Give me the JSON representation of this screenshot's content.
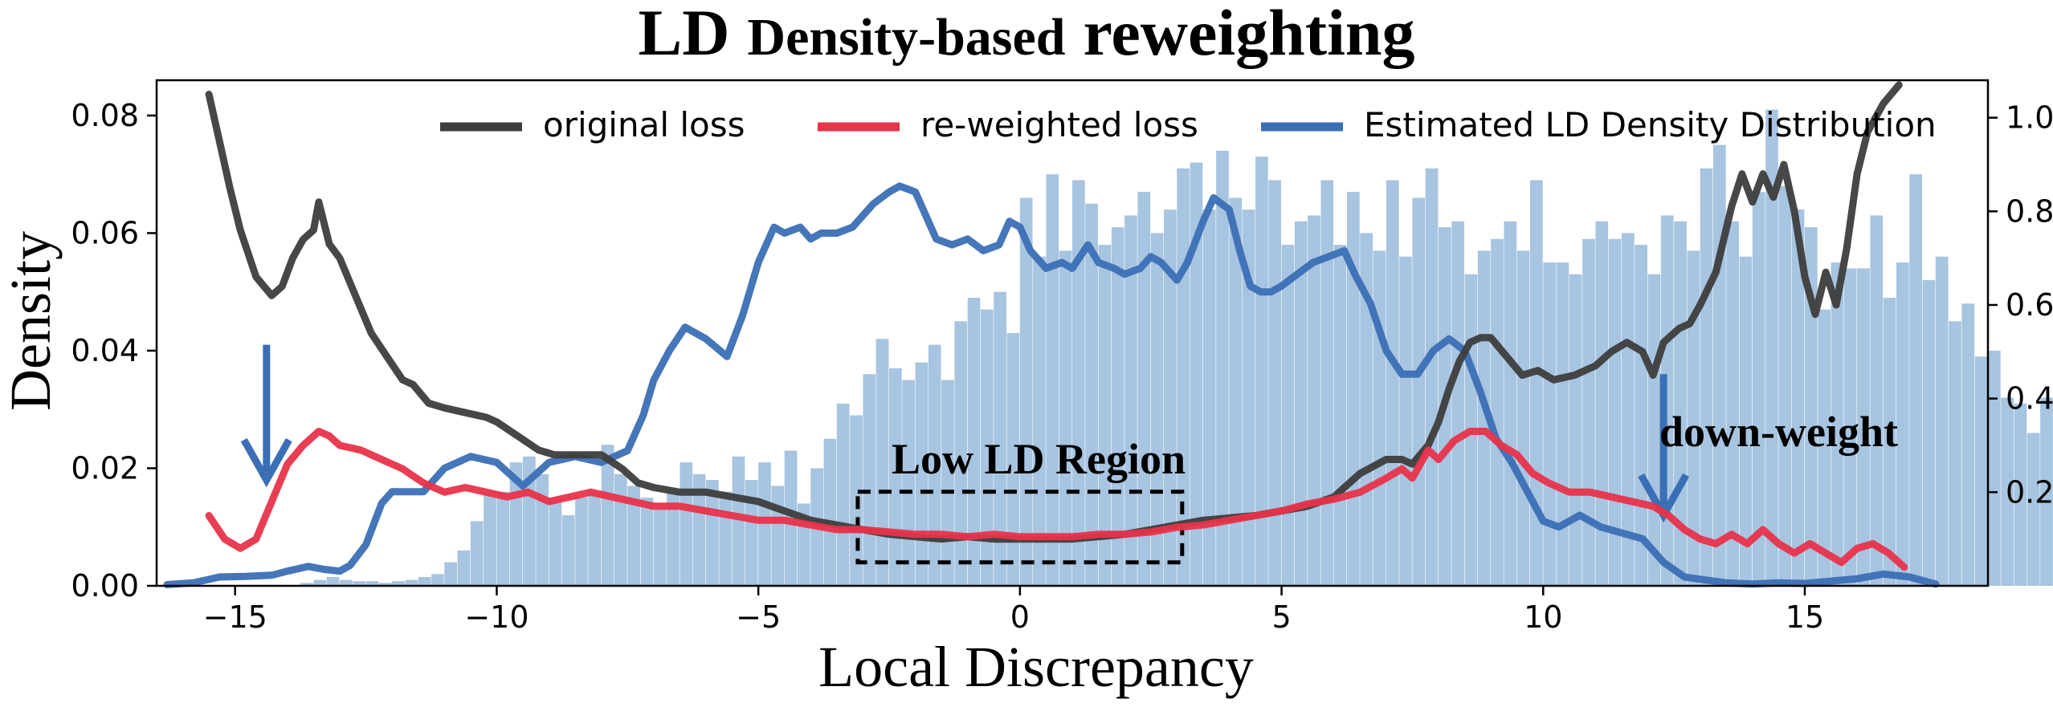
{
  "title_main": "LD",
  "title_rest": "Density-based",
  "title_end": "reweighting",
  "chart_data": {
    "type": "bar",
    "xlabel": "Local Discrepancy",
    "ylabel": "Density",
    "xlim": [
      -16.5,
      18.5
    ],
    "ylim": [
      0,
      0.086
    ],
    "y2lim": [
      0,
      1.08
    ],
    "xticks": [
      -15,
      -10,
      -5,
      0,
      5,
      10,
      15
    ],
    "xtick_labels": [
      "−15",
      "−10",
      "−5",
      "0",
      "5",
      "10",
      "15"
    ],
    "yticks": [
      0.0,
      0.02,
      0.04,
      0.06,
      0.08
    ],
    "ytick_labels": [
      "0.00",
      "0.02",
      "0.04",
      "0.06",
      "0.08"
    ],
    "y2ticks": [
      0.2,
      0.4,
      0.6,
      0.8,
      1.0
    ],
    "y2tick_labels": [
      "0.2",
      "0.4",
      "0.6",
      "0.8",
      "1.0"
    ],
    "histogram": {
      "bin_width": 0.25,
      "x_start": -16.0,
      "values": [
        0,
        0,
        0,
        0,
        0,
        0,
        0,
        0,
        0,
        0.0005,
        0.001,
        0.0015,
        0.001,
        0.0008,
        0.0008,
        0.0005,
        0.0008,
        0.001,
        0.0015,
        0.002,
        0.004,
        0.006,
        0.011,
        0.016,
        0.016,
        0.021,
        0.022,
        0.019,
        0.015,
        0.012,
        0.015,
        0.016,
        0.024,
        0.019,
        0.017,
        0.015,
        0.013,
        0.016,
        0.021,
        0.019,
        0.018,
        0.016,
        0.022,
        0.018,
        0.021,
        0.017,
        0.023,
        0.014,
        0.02,
        0.025,
        0.031,
        0.029,
        0.036,
        0.042,
        0.037,
        0.035,
        0.038,
        0.041,
        0.035,
        0.045,
        0.049,
        0.047,
        0.05,
        0.043,
        0.066,
        0.056,
        0.07,
        0.057,
        0.069,
        0.065,
        0.058,
        0.061,
        0.063,
        0.067,
        0.06,
        0.064,
        0.071,
        0.072,
        0.064,
        0.074,
        0.066,
        0.064,
        0.073,
        0.069,
        0.058,
        0.062,
        0.063,
        0.069,
        0.058,
        0.067,
        0.06,
        0.057,
        0.069,
        0.056,
        0.066,
        0.071,
        0.061,
        0.062,
        0.053,
        0.057,
        0.059,
        0.062,
        0.057,
        0.069,
        0.055,
        0.055,
        0.053,
        0.059,
        0.062,
        0.059,
        0.06,
        0.058,
        0.053,
        0.063,
        0.062,
        0.057,
        0.071,
        0.075,
        0.062,
        0.056,
        0.067,
        0.081,
        0.068,
        0.064,
        0.061,
        0.047,
        0.055,
        0.054,
        0.054,
        0.063,
        0.049,
        0.055,
        0.07,
        0.052,
        0.056,
        0.045,
        0.048,
        0.039,
        0.04,
        0.032,
        0.031,
        0.026,
        0.032,
        0.036,
        0.038,
        0.041,
        0.034,
        0.03,
        0.025,
        0.023,
        0.02,
        0.018,
        0.016,
        0.015,
        0.012,
        0.01,
        0.011,
        0.012,
        0.01,
        0.01,
        0.008,
        0.009,
        0.011,
        0.012,
        0.01,
        0.008,
        0.005,
        0.005,
        0.004,
        0.003,
        0.002,
        0.0015,
        0.001,
        0.001,
        0.0008,
        0.0005,
        0.0005,
        0.0005,
        0.0005,
        0.0003,
        0.0003,
        0.0003,
        0.0003,
        0.0003,
        0.0003,
        0.0005,
        0.0005,
        0.0005,
        0.0005,
        0.001,
        0.001,
        0.0005
      ]
    },
    "series": [
      {
        "name": "original loss",
        "axis": "right",
        "color": "#3d3d3d",
        "x": [
          -15.5,
          -15.3,
          -15.1,
          -14.9,
          -14.6,
          -14.3,
          -14.1,
          -13.9,
          -13.7,
          -13.5,
          -13.4,
          -13.2,
          -13.0,
          -12.7,
          -12.4,
          -12.1,
          -11.8,
          -11.6,
          -11.3,
          -11.0,
          -10.6,
          -10.2,
          -10.0,
          -9.6,
          -9.2,
          -8.9,
          -8.5,
          -8.0,
          -7.6,
          -7.3,
          -7.0,
          -6.5,
          -6.0,
          -5.5,
          -5.0,
          -4.5,
          -4.0,
          -3.5,
          -3.0,
          -2.5,
          -2.0,
          -1.5,
          -1.0,
          -0.5,
          0.0,
          0.5,
          1.0,
          1.5,
          2.0,
          2.5,
          3.0,
          3.5,
          4.0,
          4.5,
          5.0,
          5.5,
          6.0,
          6.5,
          7.0,
          7.3,
          7.5,
          7.8,
          8.0,
          8.2,
          8.4,
          8.6,
          8.8,
          9.0,
          9.3,
          9.6,
          9.9,
          10.2,
          10.6,
          11.0,
          11.3,
          11.6,
          11.9,
          12.1,
          12.3,
          12.6,
          12.8,
          13.0,
          13.3,
          13.6,
          13.8,
          14.0,
          14.2,
          14.4,
          14.6,
          14.8,
          15.0,
          15.2,
          15.4,
          15.6,
          15.8,
          16.0,
          16.2,
          16.5,
          16.8
        ],
        "y": [
          1.05,
          0.95,
          0.85,
          0.76,
          0.66,
          0.62,
          0.64,
          0.7,
          0.74,
          0.76,
          0.82,
          0.73,
          0.7,
          0.62,
          0.54,
          0.49,
          0.44,
          0.43,
          0.39,
          0.38,
          0.37,
          0.36,
          0.35,
          0.32,
          0.29,
          0.28,
          0.28,
          0.28,
          0.25,
          0.22,
          0.21,
          0.2,
          0.2,
          0.19,
          0.18,
          0.16,
          0.14,
          0.13,
          0.12,
          0.11,
          0.105,
          0.1,
          0.105,
          0.1,
          0.1,
          0.1,
          0.1,
          0.105,
          0.11,
          0.12,
          0.13,
          0.14,
          0.145,
          0.15,
          0.16,
          0.17,
          0.19,
          0.24,
          0.27,
          0.27,
          0.26,
          0.3,
          0.35,
          0.42,
          0.48,
          0.52,
          0.53,
          0.53,
          0.49,
          0.45,
          0.46,
          0.44,
          0.45,
          0.47,
          0.5,
          0.52,
          0.5,
          0.45,
          0.52,
          0.55,
          0.56,
          0.6,
          0.67,
          0.81,
          0.88,
          0.82,
          0.88,
          0.83,
          0.9,
          0.8,
          0.66,
          0.58,
          0.67,
          0.6,
          0.72,
          0.88,
          0.97,
          1.03,
          1.07
        ]
      },
      {
        "name": "re-weighted loss",
        "axis": "right",
        "color": "#e8334a",
        "x": [
          -15.5,
          -15.2,
          -14.9,
          -14.6,
          -14.3,
          -14.0,
          -13.7,
          -13.4,
          -13.2,
          -13.0,
          -12.6,
          -12.2,
          -11.8,
          -11.4,
          -11.0,
          -10.6,
          -10.2,
          -9.8,
          -9.4,
          -9.0,
          -8.6,
          -8.2,
          -7.8,
          -7.4,
          -7.0,
          -6.5,
          -6.0,
          -5.5,
          -5.0,
          -4.5,
          -4.0,
          -3.5,
          -3.0,
          -2.5,
          -2.0,
          -1.5,
          -1.0,
          -0.5,
          0.0,
          0.5,
          1.0,
          1.5,
          2.0,
          2.5,
          3.0,
          3.5,
          4.0,
          4.5,
          5.0,
          5.5,
          6.0,
          6.5,
          7.0,
          7.3,
          7.5,
          7.8,
          8.0,
          8.3,
          8.6,
          8.9,
          9.2,
          9.5,
          9.8,
          10.1,
          10.5,
          10.9,
          11.3,
          11.7,
          12.1,
          12.4,
          12.7,
          13.0,
          13.3,
          13.6,
          13.9,
          14.2,
          14.5,
          14.8,
          15.1,
          15.4,
          15.7,
          16.0,
          16.3,
          16.6,
          16.9
        ],
        "y": [
          0.15,
          0.1,
          0.08,
          0.1,
          0.18,
          0.26,
          0.3,
          0.33,
          0.32,
          0.3,
          0.29,
          0.27,
          0.25,
          0.22,
          0.2,
          0.21,
          0.2,
          0.19,
          0.2,
          0.18,
          0.19,
          0.2,
          0.19,
          0.18,
          0.17,
          0.17,
          0.16,
          0.15,
          0.14,
          0.14,
          0.13,
          0.12,
          0.12,
          0.115,
          0.11,
          0.11,
          0.105,
          0.11,
          0.105,
          0.105,
          0.105,
          0.11,
          0.11,
          0.115,
          0.125,
          0.13,
          0.14,
          0.15,
          0.16,
          0.175,
          0.185,
          0.2,
          0.23,
          0.25,
          0.23,
          0.29,
          0.27,
          0.31,
          0.33,
          0.33,
          0.3,
          0.28,
          0.24,
          0.22,
          0.2,
          0.2,
          0.19,
          0.18,
          0.17,
          0.15,
          0.12,
          0.1,
          0.09,
          0.11,
          0.09,
          0.12,
          0.09,
          0.07,
          0.09,
          0.07,
          0.05,
          0.08,
          0.09,
          0.07,
          0.04
        ]
      },
      {
        "name": "Estimated LD Density Distribution",
        "axis": "left",
        "color": "#3a6fb5",
        "x": [
          -16.3,
          -15.8,
          -15.3,
          -14.8,
          -14.3,
          -14.0,
          -13.6,
          -13.3,
          -13.0,
          -12.8,
          -12.5,
          -12.2,
          -12.0,
          -11.7,
          -11.4,
          -11.0,
          -10.5,
          -10.0,
          -9.5,
          -9.0,
          -8.5,
          -8.0,
          -7.5,
          -7.2,
          -7.0,
          -6.7,
          -6.4,
          -6.0,
          -5.6,
          -5.3,
          -5.0,
          -4.7,
          -4.5,
          -4.2,
          -4.0,
          -3.8,
          -3.5,
          -3.2,
          -3.0,
          -2.8,
          -2.5,
          -2.3,
          -2.0,
          -1.8,
          -1.6,
          -1.3,
          -1.0,
          -0.7,
          -0.4,
          -0.2,
          0.0,
          0.2,
          0.5,
          0.8,
          1.0,
          1.3,
          1.5,
          1.8,
          2.0,
          2.3,
          2.5,
          2.7,
          3.0,
          3.2,
          3.5,
          3.7,
          4.0,
          4.2,
          4.4,
          4.6,
          4.8,
          5.0,
          5.3,
          5.6,
          5.9,
          6.2,
          6.4,
          6.7,
          7.0,
          7.3,
          7.6,
          7.9,
          8.2,
          8.5,
          8.8,
          9.1,
          9.4,
          9.7,
          10.0,
          10.3,
          10.7,
          11.1,
          11.5,
          11.9,
          12.3,
          12.7,
          13.1,
          13.5,
          14.0,
          14.5,
          15.0,
          15.5,
          16.0,
          16.5,
          17.0,
          17.5
        ],
        "y": [
          0.0002,
          0.0005,
          0.0015,
          0.0016,
          0.0018,
          0.0025,
          0.0033,
          0.0028,
          0.0025,
          0.0035,
          0.007,
          0.014,
          0.016,
          0.016,
          0.016,
          0.02,
          0.022,
          0.021,
          0.017,
          0.021,
          0.022,
          0.021,
          0.023,
          0.029,
          0.035,
          0.04,
          0.044,
          0.042,
          0.039,
          0.046,
          0.055,
          0.061,
          0.06,
          0.061,
          0.059,
          0.06,
          0.06,
          0.061,
          0.063,
          0.065,
          0.067,
          0.068,
          0.067,
          0.063,
          0.059,
          0.058,
          0.059,
          0.057,
          0.058,
          0.062,
          0.061,
          0.057,
          0.054,
          0.055,
          0.054,
          0.058,
          0.055,
          0.054,
          0.053,
          0.054,
          0.056,
          0.055,
          0.052,
          0.055,
          0.062,
          0.066,
          0.064,
          0.057,
          0.051,
          0.05,
          0.05,
          0.051,
          0.053,
          0.055,
          0.056,
          0.057,
          0.053,
          0.048,
          0.04,
          0.036,
          0.036,
          0.04,
          0.042,
          0.04,
          0.033,
          0.025,
          0.021,
          0.016,
          0.011,
          0.01,
          0.012,
          0.01,
          0.009,
          0.008,
          0.004,
          0.0015,
          0.001,
          0.0005,
          0.0003,
          0.0005,
          0.0004,
          0.0008,
          0.0012,
          0.002,
          0.0015,
          0.0003
        ]
      }
    ],
    "legend": {
      "placement": "top",
      "entries": [
        "original loss",
        "re-weighted loss",
        "Estimated LD Density Distribution"
      ]
    },
    "annotations": {
      "region_label": "Low LD Region",
      "region_x": [
        -3.1,
        3.1
      ],
      "region_y": [
        0.004,
        0.016
      ],
      "down_weight_label": "down-weight",
      "arrows": [
        {
          "x": -14.4,
          "y_from": 0.041,
          "y_to": 0.018
        },
        {
          "x": 12.3,
          "y_from": 0.036,
          "y_to": 0.012
        }
      ],
      "arrow_color": "#3a6fb5"
    },
    "hist_color": "#a7c4e0",
    "grid": false
  }
}
